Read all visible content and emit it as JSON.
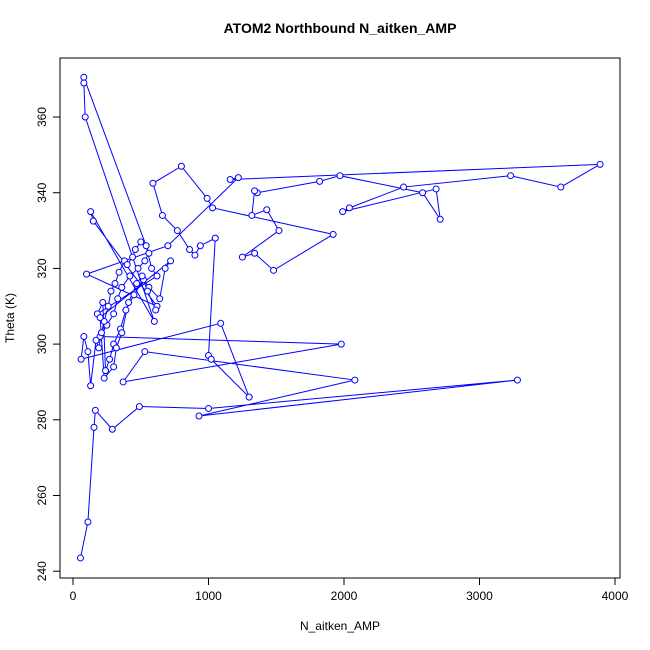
{
  "chart_data": {
    "type": "scatter",
    "line": true,
    "title": "ATOM2 Northbound N_aitken_AMP",
    "x_label": "N_aitken_AMP",
    "y_label": "Theta (K)",
    "color": "#0000ff",
    "xlim": [
      -96,
      4037
    ],
    "ylim": [
      238.2,
      375.6
    ],
    "xticks": [
      0,
      1000,
      2000,
      3000,
      4000
    ],
    "yticks": [
      240,
      260,
      280,
      300,
      320,
      340,
      360
    ],
    "x": [
      55,
      110,
      155,
      165,
      290,
      490,
      1000,
      3280,
      930,
      2080,
      530,
      370,
      1980,
      200,
      250,
      300,
      330,
      360,
      420,
      480,
      530,
      560,
      80,
      80,
      90,
      600,
      130,
      150,
      620,
      100,
      700,
      1220,
      1160,
      3890,
      3600,
      3230,
      2440,
      2040,
      1990,
      2680,
      2710,
      2580,
      1970,
      1820,
      1360,
      1340,
      1320,
      1430,
      1520,
      1250,
      1340,
      1480,
      1920,
      1030,
      990,
      800,
      590,
      660,
      770,
      860,
      900,
      940,
      1050,
      1000,
      1020,
      1300,
      1090,
      60,
      80,
      110,
      130,
      170,
      190,
      210,
      230,
      260,
      280,
      310,
      340,
      380,
      400,
      440,
      460,
      500,
      540,
      580,
      620,
      180,
      220,
      240,
      270,
      300,
      350,
      390,
      450,
      520,
      560,
      640,
      680,
      720,
      200,
      230,
      300,
      320,
      360,
      410,
      470,
      510,
      550,
      610
    ],
    "y": [
      243.5,
      253,
      278,
      282.5,
      277.5,
      283.5,
      283,
      290.5,
      281,
      290.5,
      298,
      290,
      300,
      302,
      305,
      308,
      312,
      315,
      318,
      320,
      322,
      324,
      370.5,
      369,
      360,
      306,
      335,
      332.5,
      310,
      318.5,
      326,
      344,
      343.5,
      347.5,
      341.5,
      344.5,
      341.5,
      336,
      335,
      341,
      333,
      340,
      344.5,
      343,
      340,
      340.5,
      334,
      335.5,
      330,
      323,
      324,
      319.5,
      329,
      336,
      338.5,
      347,
      342.5,
      334,
      330,
      325,
      323.5,
      326,
      328,
      297,
      296,
      286,
      305.5,
      296,
      302,
      298,
      289,
      301,
      299,
      303,
      306,
      310,
      314,
      316,
      319,
      322,
      321,
      323,
      325,
      327,
      326,
      320,
      318,
      308,
      311,
      293,
      296,
      300,
      304,
      309,
      313,
      317,
      315,
      312,
      320,
      322,
      307,
      291,
      294,
      299,
      303,
      311,
      316,
      318,
      314,
      309
    ]
  }
}
